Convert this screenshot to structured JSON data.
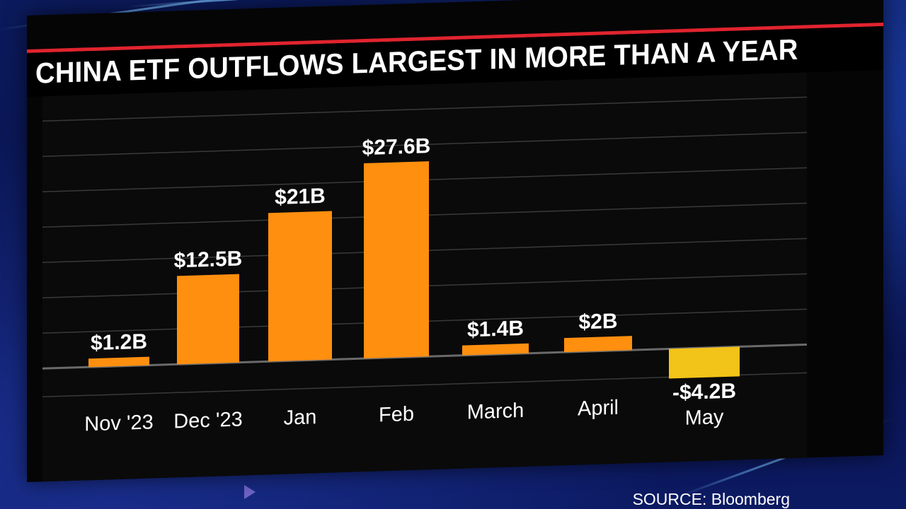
{
  "chart_data": {
    "type": "bar",
    "title": "CHINA ETF OUTFLOWS LARGEST IN MORE THAN A YEAR",
    "categories": [
      "Nov '23",
      "Dec '23",
      "Jan",
      "Feb",
      "March",
      "April",
      "May"
    ],
    "values": [
      1.2,
      12.5,
      21,
      27.6,
      1.4,
      2,
      -4.2
    ],
    "data_labels": [
      "$1.2B",
      "$12.5B",
      "$21B",
      "$27.6B",
      "$1.4B",
      "$2B",
      "-$4.2B"
    ],
    "unit": "$B",
    "xlabel": "",
    "ylabel": "",
    "ylim": [
      -6,
      33
    ],
    "grid": true,
    "legend": "none",
    "colors": {
      "positive": "#ff8f0f",
      "negative": "#f2c318",
      "gridline": "#3a3a3a",
      "baseline": "#6a6a6a",
      "text": "#ffffff",
      "accent_rule": "#e0242f"
    }
  },
  "source_label": "SOURCE: Bloomberg"
}
